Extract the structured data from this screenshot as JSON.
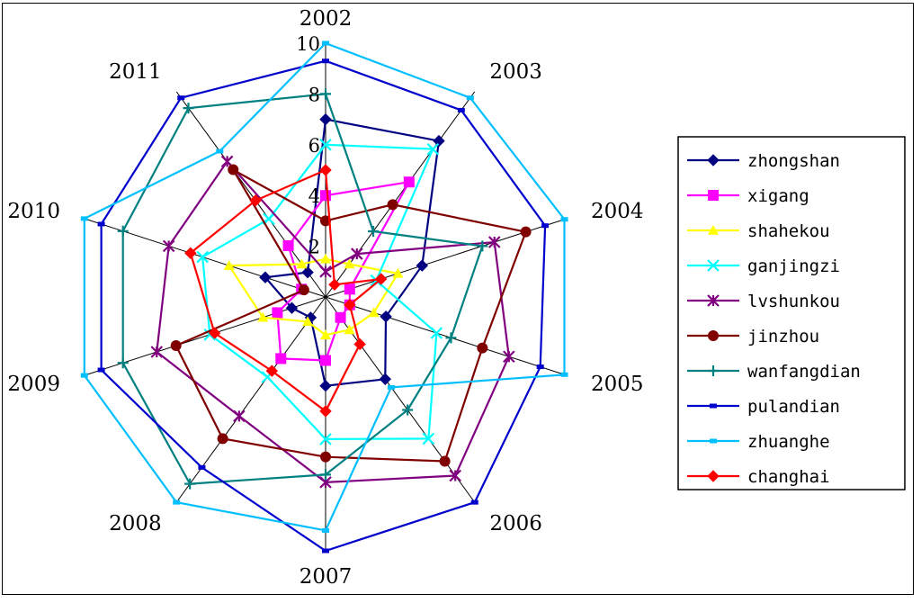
{
  "chart_data": {
    "type": "radar",
    "categories": [
      "2002",
      "2003",
      "2004",
      "2005",
      "2006",
      "2007",
      "2008",
      "2009",
      "2010",
      "2011"
    ],
    "rlim": [
      0,
      10
    ],
    "ticks": [
      "2",
      "4",
      "6",
      "8",
      "10"
    ],
    "grid": false,
    "legend_position": "right",
    "series": [
      {
        "name": "zhongshan",
        "color": "#000080",
        "marker": "diamond",
        "values": [
          7.0,
          7.6,
          4.0,
          2.5,
          4.0,
          3.5,
          1.0,
          1.4,
          2.5,
          1.2
        ]
      },
      {
        "name": "xigang",
        "color": "#FF00FF",
        "marker": "square",
        "values": [
          4.0,
          5.6,
          1.0,
          1.0,
          1.0,
          2.5,
          3.0,
          2.0,
          1.0,
          2.5
        ]
      },
      {
        "name": "shahekou",
        "color": "#FFFF00",
        "marker": "triangle",
        "values": [
          1.5,
          1.6,
          3.0,
          2.0,
          1.6,
          1.5,
          1.2,
          2.6,
          4.0,
          1.6
        ]
      },
      {
        "name": "ganjingzi",
        "color": "#00FFFF",
        "marker": "x",
        "values": [
          6.0,
          7.2,
          2.1,
          4.6,
          6.9,
          5.6,
          3.9,
          4.8,
          5.1,
          3.8
        ]
      },
      {
        "name": "lvshunkou",
        "color": "#800080",
        "marker": "star",
        "values": [
          1.0,
          2.1,
          7.0,
          7.6,
          8.7,
          7.3,
          5.8,
          7.0,
          6.5,
          6.6
        ]
      },
      {
        "name": "jinzhou",
        "color": "#800000",
        "marker": "circle",
        "values": [
          3.0,
          4.5,
          8.3,
          6.5,
          8.0,
          6.3,
          6.9,
          6.2,
          0.9,
          6.2
        ]
      },
      {
        "name": "wanfangdian",
        "color": "#008080",
        "marker": "plus",
        "values": [
          8.0,
          3.2,
          6.5,
          5.2,
          5.5,
          7.0,
          9.1,
          8.4,
          8.4,
          9.2
        ]
      },
      {
        "name": "pulandian",
        "color": "#0000CD",
        "marker": "dash",
        "values": [
          9.3,
          9.1,
          9.1,
          8.9,
          10.0,
          10.0,
          8.3,
          9.3,
          9.3,
          9.7
        ]
      },
      {
        "name": "zhuanghe",
        "color": "#00BFFF",
        "marker": "dash",
        "values": [
          10.0,
          9.7,
          9.9,
          9.9,
          4.4,
          9.2,
          10.0,
          10.0,
          10.0,
          7.1
        ]
      },
      {
        "name": "changhai",
        "color": "#FF0000",
        "marker": "diamond",
        "values": [
          5.0,
          0.6,
          2.3,
          1.0,
          2.3,
          4.5,
          3.6,
          4.6,
          5.6,
          4.7
        ]
      }
    ]
  }
}
